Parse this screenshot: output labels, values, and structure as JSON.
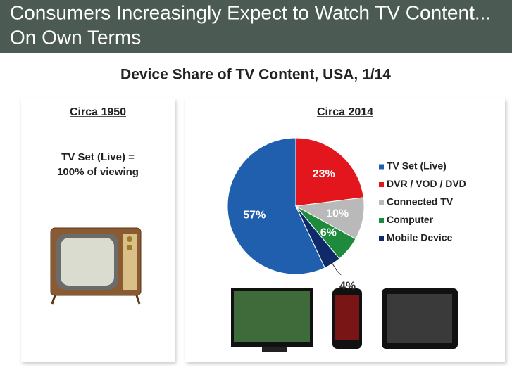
{
  "slide": {
    "title_lines": [
      "Consumers Increasingly Expect to Watch TV Content...",
      "On Own Terms"
    ],
    "subtitle": "Device Share of TV Content, USA, 1/14",
    "left_panel": {
      "heading": "Circa 1950",
      "text_lines": [
        "TV Set (Live) =",
        "100% of viewing"
      ]
    }
  },
  "chart_data": {
    "type": "pie",
    "title": "Circa 2014",
    "categories": [
      "TV Set (Live)",
      "DVR / VOD / DVD",
      "Connected TV",
      "Computer",
      "Mobile Device"
    ],
    "values": [
      57,
      23,
      10,
      6,
      4
    ],
    "value_labels": [
      "57%",
      "23%",
      "10%",
      "6%",
      "4%"
    ],
    "colors": [
      "#1f5fae",
      "#e3161d",
      "#b9b9b9",
      "#1e8a3c",
      "#0e2a68"
    ],
    "legend": "right"
  }
}
